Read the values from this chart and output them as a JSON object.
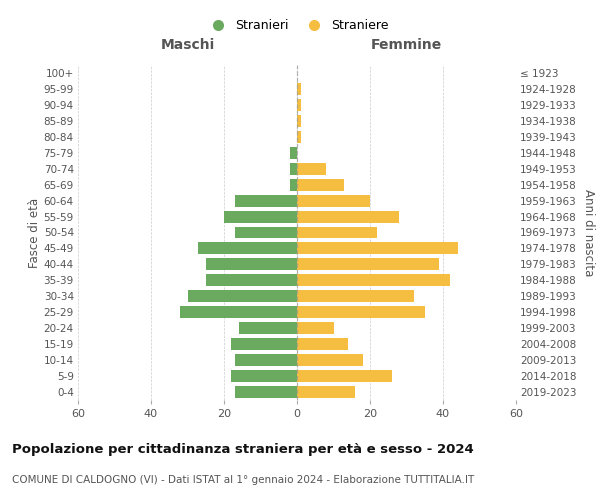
{
  "age_groups_bottom_to_top": [
    "0-4",
    "5-9",
    "10-14",
    "15-19",
    "20-24",
    "25-29",
    "30-34",
    "35-39",
    "40-44",
    "45-49",
    "50-54",
    "55-59",
    "60-64",
    "65-69",
    "70-74",
    "75-79",
    "80-84",
    "85-89",
    "90-94",
    "95-99",
    "100+"
  ],
  "birth_years_bottom_to_top": [
    "2019-2023",
    "2014-2018",
    "2009-2013",
    "2004-2008",
    "1999-2003",
    "1994-1998",
    "1989-1993",
    "1984-1988",
    "1979-1983",
    "1974-1978",
    "1969-1973",
    "1964-1968",
    "1959-1963",
    "1954-1958",
    "1949-1953",
    "1944-1948",
    "1939-1943",
    "1934-1938",
    "1929-1933",
    "1924-1928",
    "≤ 1923"
  ],
  "males_bottom_to_top": [
    17,
    18,
    17,
    18,
    16,
    32,
    30,
    25,
    25,
    27,
    17,
    20,
    17,
    2,
    2,
    2,
    0,
    0,
    0,
    0,
    0
  ],
  "females_bottom_to_top": [
    16,
    26,
    18,
    14,
    10,
    35,
    32,
    42,
    39,
    44,
    22,
    28,
    20,
    13,
    8,
    0,
    1,
    1,
    1,
    1,
    0
  ],
  "male_color": "#6aaa5e",
  "female_color": "#f5be41",
  "title": "Popolazione per cittadinanza straniera per età e sesso - 2024",
  "subtitle": "COMUNE DI CALDOGNO (VI) - Dati ISTAT al 1° gennaio 2024 - Elaborazione TUTTITALIA.IT",
  "xlabel_left": "Maschi",
  "xlabel_right": "Femmine",
  "ylabel_left": "Fasce di età",
  "ylabel_right": "Anni di nascita",
  "legend_male": "Stranieri",
  "legend_female": "Straniere",
  "xlim": 60,
  "background_color": "#ffffff",
  "grid_color": "#cccccc",
  "bar_height": 0.75,
  "center_line_color": "#999999"
}
